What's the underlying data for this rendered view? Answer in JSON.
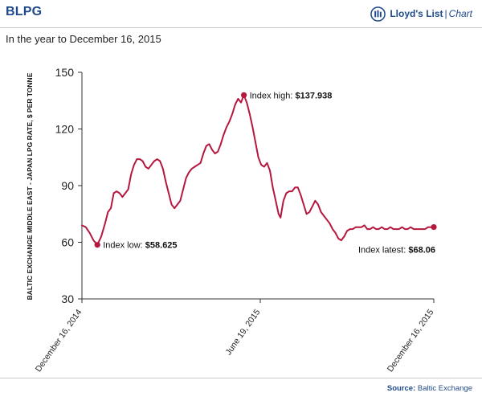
{
  "header": {
    "title": "BLPG",
    "brand": {
      "name": "Lloyd's List",
      "separator": "|",
      "kind": "Chart"
    },
    "subtitle": "In the year to December 16, 2015"
  },
  "source": {
    "label": "Source:",
    "text": "Baltic Exchange"
  },
  "colors": {
    "line": "#b5173f",
    "accent": "#1f4a8a",
    "axis": "#333333"
  },
  "chart_data": {
    "type": "line",
    "ylabel": "BALTIC EXCHANGE MIDDLE EAST - JAPAN LPG RATE, $ PER TONNE",
    "ylim": [
      30,
      150
    ],
    "yticks": [
      150,
      120,
      90,
      60,
      30
    ],
    "xlim": [
      "2014-12-16",
      "2015-12-16"
    ],
    "xticks": [
      {
        "date": "2014-12-16",
        "label": "December 16, 2014"
      },
      {
        "date": "2015-06-19",
        "label": "June 19, 2015"
      },
      {
        "date": "2015-12-16",
        "label": "December 16, 2015"
      }
    ],
    "grid": false,
    "series": [
      {
        "points": [
          [
            "2014-12-16",
            69
          ],
          [
            "2014-12-20",
            68
          ],
          [
            "2014-12-24",
            65
          ],
          [
            "2014-12-28",
            61
          ],
          [
            "2015-01-01",
            58.625
          ],
          [
            "2015-01-05",
            63
          ],
          [
            "2015-01-09",
            70
          ],
          [
            "2015-01-12",
            76
          ],
          [
            "2015-01-15",
            78
          ],
          [
            "2015-01-18",
            86
          ],
          [
            "2015-01-21",
            87
          ],
          [
            "2015-01-24",
            86
          ],
          [
            "2015-01-27",
            84
          ],
          [
            "2015-01-30",
            86
          ],
          [
            "2015-02-02",
            88
          ],
          [
            "2015-02-05",
            96
          ],
          [
            "2015-02-08",
            101
          ],
          [
            "2015-02-11",
            104
          ],
          [
            "2015-02-14",
            104
          ],
          [
            "2015-02-17",
            103
          ],
          [
            "2015-02-20",
            100
          ],
          [
            "2015-02-23",
            99
          ],
          [
            "2015-02-26",
            101
          ],
          [
            "2015-03-01",
            103
          ],
          [
            "2015-03-04",
            104
          ],
          [
            "2015-03-07",
            103
          ],
          [
            "2015-03-10",
            99
          ],
          [
            "2015-03-13",
            92
          ],
          [
            "2015-03-16",
            86
          ],
          [
            "2015-03-19",
            80
          ],
          [
            "2015-03-22",
            78
          ],
          [
            "2015-03-25",
            80
          ],
          [
            "2015-03-28",
            82
          ],
          [
            "2015-03-31",
            88
          ],
          [
            "2015-04-03",
            94
          ],
          [
            "2015-04-06",
            97
          ],
          [
            "2015-04-09",
            99
          ],
          [
            "2015-04-12",
            100
          ],
          [
            "2015-04-15",
            101
          ],
          [
            "2015-04-18",
            102
          ],
          [
            "2015-04-21",
            107
          ],
          [
            "2015-04-24",
            111
          ],
          [
            "2015-04-27",
            112
          ],
          [
            "2015-04-30",
            109
          ],
          [
            "2015-05-03",
            107
          ],
          [
            "2015-05-06",
            108
          ],
          [
            "2015-05-09",
            112
          ],
          [
            "2015-05-12",
            117
          ],
          [
            "2015-05-15",
            121
          ],
          [
            "2015-05-18",
            124
          ],
          [
            "2015-05-21",
            128
          ],
          [
            "2015-05-24",
            133
          ],
          [
            "2015-05-27",
            136
          ],
          [
            "2015-05-30",
            134
          ],
          [
            "2015-06-02",
            137.938
          ],
          [
            "2015-06-05",
            134
          ],
          [
            "2015-06-08",
            128
          ],
          [
            "2015-06-11",
            121
          ],
          [
            "2015-06-14",
            113
          ],
          [
            "2015-06-17",
            105
          ],
          [
            "2015-06-20",
            101
          ],
          [
            "2015-06-23",
            100
          ],
          [
            "2015-06-26",
            102
          ],
          [
            "2015-06-29",
            98
          ],
          [
            "2015-07-02",
            89
          ],
          [
            "2015-07-05",
            82
          ],
          [
            "2015-07-08",
            75
          ],
          [
            "2015-07-10",
            73
          ],
          [
            "2015-07-13",
            82
          ],
          [
            "2015-07-16",
            86
          ],
          [
            "2015-07-19",
            87
          ],
          [
            "2015-07-22",
            87
          ],
          [
            "2015-07-25",
            89
          ],
          [
            "2015-07-28",
            89
          ],
          [
            "2015-07-31",
            85
          ],
          [
            "2015-08-03",
            80
          ],
          [
            "2015-08-06",
            75
          ],
          [
            "2015-08-09",
            76
          ],
          [
            "2015-08-12",
            79
          ],
          [
            "2015-08-15",
            82
          ],
          [
            "2015-08-18",
            80
          ],
          [
            "2015-08-21",
            76
          ],
          [
            "2015-08-24",
            74
          ],
          [
            "2015-08-27",
            72
          ],
          [
            "2015-08-30",
            70
          ],
          [
            "2015-09-02",
            67
          ],
          [
            "2015-09-05",
            65
          ],
          [
            "2015-09-08",
            62
          ],
          [
            "2015-09-11",
            61
          ],
          [
            "2015-09-14",
            63
          ],
          [
            "2015-09-17",
            66
          ],
          [
            "2015-09-20",
            67
          ],
          [
            "2015-09-23",
            67
          ],
          [
            "2015-09-26",
            68
          ],
          [
            "2015-09-29",
            68
          ],
          [
            "2015-10-02",
            68
          ],
          [
            "2015-10-05",
            69
          ],
          [
            "2015-10-08",
            67
          ],
          [
            "2015-10-11",
            67
          ],
          [
            "2015-10-14",
            68
          ],
          [
            "2015-10-17",
            67
          ],
          [
            "2015-10-20",
            67
          ],
          [
            "2015-10-23",
            68
          ],
          [
            "2015-10-26",
            67
          ],
          [
            "2015-10-29",
            67
          ],
          [
            "2015-11-01",
            68
          ],
          [
            "2015-11-04",
            67
          ],
          [
            "2015-11-07",
            67
          ],
          [
            "2015-11-10",
            67
          ],
          [
            "2015-11-13",
            68
          ],
          [
            "2015-11-16",
            67
          ],
          [
            "2015-11-19",
            67
          ],
          [
            "2015-11-22",
            68
          ],
          [
            "2015-11-25",
            67
          ],
          [
            "2015-11-28",
            67
          ],
          [
            "2015-12-01",
            67
          ],
          [
            "2015-12-04",
            67
          ],
          [
            "2015-12-07",
            67
          ],
          [
            "2015-12-10",
            68
          ],
          [
            "2015-12-16",
            68.06
          ]
        ]
      }
    ],
    "annotations": [
      {
        "id": "low",
        "date": "2015-01-01",
        "value": 58.625,
        "label": "Index low:",
        "value_text": "$58.625",
        "anchor": "right"
      },
      {
        "id": "high",
        "date": "2015-06-02",
        "value": 137.938,
        "label": "Index high:",
        "value_text": "$137.938",
        "anchor": "right"
      },
      {
        "id": "latest",
        "date": "2015-12-16",
        "value": 68.06,
        "label": "Index latest:",
        "value_text": "$68.06",
        "anchor": "below-left"
      }
    ]
  }
}
